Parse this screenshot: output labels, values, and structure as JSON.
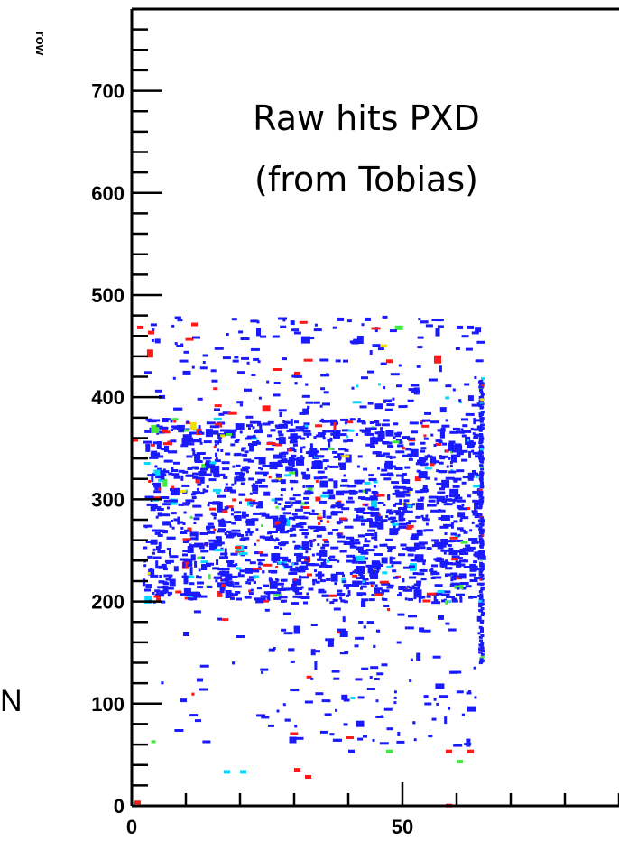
{
  "chart_data": {
    "type": "scatter",
    "title": "",
    "xlabel": "",
    "ylabel": "row",
    "xlim": [
      0,
      90
    ],
    "ylim": [
      0,
      780
    ],
    "grid": false,
    "legend": "none",
    "x_ticks": [
      0,
      50
    ],
    "y_ticks": [
      0,
      100,
      200,
      300,
      400,
      500,
      600,
      700
    ],
    "annotation_lines": [
      "Raw hits PXD",
      "(from Tobias)"
    ],
    "side_text": "N",
    "hit_map": {
      "x_range": [
        0,
        64
      ],
      "y_range": [
        20,
        480
      ],
      "dense_y_range": [
        200,
        380
      ],
      "colors": {
        "base": "#1a1aff",
        "mid": "#00d8ff",
        "green": "#40e840",
        "yellow": "#f0e000",
        "high": "#ff1a1a"
      },
      "isolated_hits": [
        {
          "x": 0,
          "y": 360,
          "color": "high"
        },
        {
          "x": 1,
          "y": 470,
          "color": "high"
        },
        {
          "x": 3,
          "y": 465,
          "color": "high"
        },
        {
          "x": 5,
          "y": 402,
          "color": "base"
        },
        {
          "x": 11,
          "y": 473,
          "color": "high"
        },
        {
          "x": 17,
          "y": 35,
          "color": "mid"
        },
        {
          "x": 20,
          "y": 35,
          "color": "mid"
        },
        {
          "x": 30,
          "y": 37,
          "color": "high"
        },
        {
          "x": 32,
          "y": 30,
          "color": "high"
        },
        {
          "x": 40,
          "y": 55,
          "color": "base"
        },
        {
          "x": 47,
          "y": 55,
          "color": "green"
        },
        {
          "x": 58,
          "y": 55,
          "color": "high"
        },
        {
          "x": 60,
          "y": 45,
          "color": "green"
        },
        {
          "x": 62,
          "y": 55,
          "color": "high"
        },
        {
          "x": 0.5,
          "y": 5,
          "color": "high"
        },
        {
          "x": 58,
          "y": 2,
          "color": "high"
        },
        {
          "x": 9,
          "y": 105,
          "color": "base"
        },
        {
          "x": 12,
          "y": 125,
          "color": "base"
        },
        {
          "x": 30,
          "y": 425,
          "color": "high"
        },
        {
          "x": 47,
          "y": 437,
          "color": "high"
        },
        {
          "x": 43,
          "y": 478,
          "color": "base"
        },
        {
          "x": 38,
          "y": 478,
          "color": "base"
        },
        {
          "x": 60,
          "y": 470,
          "color": "base"
        },
        {
          "x": 62,
          "y": 470,
          "color": "base"
        }
      ]
    }
  }
}
